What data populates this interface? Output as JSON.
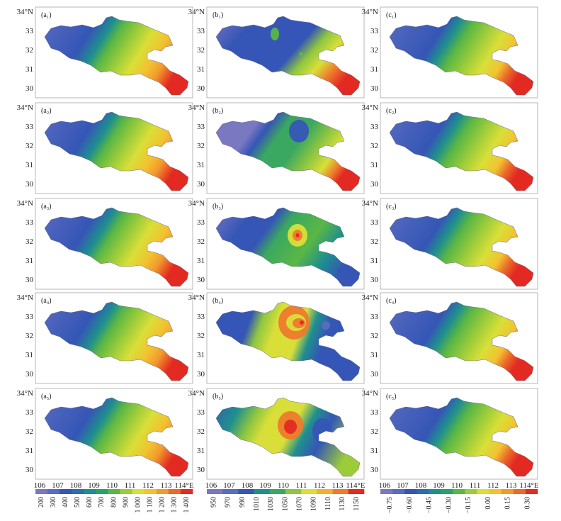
{
  "panels": [
    [
      "(a₁)",
      "(b₁)",
      "(c₁)"
    ],
    [
      "(a₂)",
      "(b₂)",
      "(c₂)"
    ],
    [
      "(a₃)",
      "(b₃)",
      "(c₃)"
    ],
    [
      "(a₄)",
      "(b₄)",
      "(c₄)"
    ],
    [
      "(a₅)",
      "(b₅)",
      "(c₅)"
    ]
  ],
  "lat_labels": [
    "34°N",
    "33",
    "32",
    "31",
    "30"
  ],
  "lon_labels": [
    "106",
    "107",
    "108",
    "109",
    "110",
    "111",
    "112",
    "113",
    "114°E"
  ],
  "legends": [
    {
      "labels": [
        "200",
        "300",
        "400",
        "500",
        "600",
        "700",
        "800",
        "900",
        "1 000",
        "1 100",
        "1 200",
        "1 300",
        "1 400"
      ],
      "colors": [
        "#7b78c2",
        "#5a6cc0",
        "#3556b6",
        "#2a6db0",
        "#1f8f8e",
        "#27a36a",
        "#5ab745",
        "#9ccc3a",
        "#d9df38",
        "#f2c230",
        "#f19a2e",
        "#ea6a2a",
        "#e32a22"
      ]
    },
    {
      "labels": [
        "950",
        "970",
        "990",
        "1010",
        "1030",
        "1050",
        "1070",
        "1090",
        "1110",
        "1130",
        "1150"
      ],
      "colors": [
        "#7b78c2",
        "#5a6cc0",
        "#3556b6",
        "#1f8f8e",
        "#3aa860",
        "#8ec640",
        "#d9df38",
        "#f2b030",
        "#ee7a2c",
        "#e32a22"
      ]
    },
    {
      "labels": [
        "−0.75",
        "−0.60",
        "−0.45",
        "−0.30",
        "−0.15",
        "0.00",
        "0.15",
        "0.30"
      ],
      "colors": [
        "#7b78c2",
        "#5a6cc0",
        "#3556b6",
        "#2a6db0",
        "#1f8f8e",
        "#27a36a",
        "#5ab745",
        "#9ccc3a",
        "#d9df38",
        "#f2c230",
        "#f19a2e",
        "#ea6a2a",
        "#e32a22"
      ]
    }
  ]
}
